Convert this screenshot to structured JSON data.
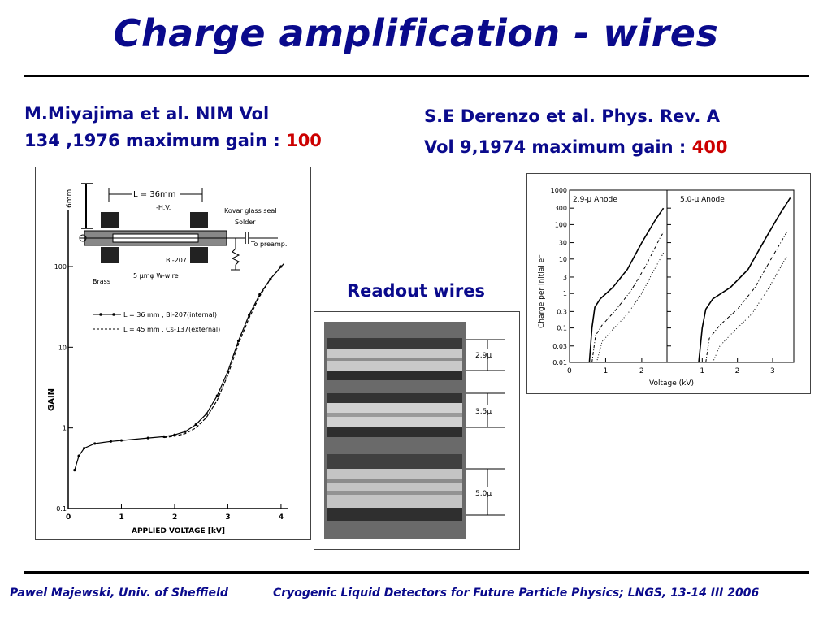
{
  "slide": {
    "title": "Charge amplification  - wires",
    "left_ref": {
      "line1": "M.Miyajima  et al. NIM Vol",
      "line2_prefix": "134 ,1976  maximum gain : ",
      "gain": "100"
    },
    "right_ref": {
      "line1": "S.E Derenzo et al. Phys. Rev. A",
      "line2_prefix": "Vol 9,1974  maximum gain : ",
      "gain": "400"
    },
    "readout_label": "Readout wires",
    "footer_left": "Pawel Majewski, Univ. of Sheffield",
    "footer_right": "Cryogenic Liquid Detectors for Future Particle Physics; LNGS, 13-14 III 2006",
    "colors": {
      "title": "#0a0a8c",
      "highlight": "#cc0000"
    }
  },
  "diagram": {
    "length_label": "L = 36mm",
    "height_label": "6mm",
    "hv_label": "-H.V.",
    "seal_label": "Kovar glass seal",
    "solder_label": "Solder",
    "preamp_label": "To preamp.",
    "source_label": "Bi-207",
    "wire_label": "5 μmφ W-wire",
    "brass_label": "Brass"
  },
  "wires_photo": {
    "labels": [
      "2.9μ",
      "3.5μ",
      "5.0μ"
    ]
  },
  "chart_data": [
    {
      "type": "line",
      "xlabel": "APPLIED VOLTAGE [kV]",
      "ylabel": "GAIN",
      "xlim": [
        0,
        4.2
      ],
      "ylim": [
        0.1,
        100
      ],
      "yscale": "log",
      "xticks": [
        "0",
        "1",
        "2",
        "3",
        "4"
      ],
      "yticks": [
        "0.1",
        "1",
        "10",
        "100"
      ],
      "legend_position": "left",
      "series": [
        {
          "name": "L = 36 mm , Bi-207(internal)",
          "style": "solid-markers",
          "points": [
            [
              0.12,
              0.3
            ],
            [
              0.2,
              0.45
            ],
            [
              0.3,
              0.56
            ],
            [
              0.5,
              0.64
            ],
            [
              0.8,
              0.68
            ],
            [
              1.0,
              0.7
            ],
            [
              1.5,
              0.75
            ],
            [
              1.8,
              0.78
            ],
            [
              2.0,
              0.82
            ],
            [
              2.2,
              0.9
            ],
            [
              2.4,
              1.1
            ],
            [
              2.6,
              1.5
            ],
            [
              2.8,
              2.5
            ],
            [
              3.0,
              5
            ],
            [
              3.2,
              12
            ],
            [
              3.4,
              25
            ],
            [
              3.6,
              45
            ],
            [
              3.8,
              70
            ],
            [
              4.0,
              100
            ]
          ]
        },
        {
          "name": "L = 45 mm , Cs-137(external)",
          "style": "dashed",
          "points": [
            [
              1.8,
              0.76
            ],
            [
              2.0,
              0.79
            ],
            [
              2.2,
              0.85
            ],
            [
              2.4,
              1.0
            ],
            [
              2.6,
              1.35
            ],
            [
              2.8,
              2.2
            ],
            [
              3.0,
              4.5
            ],
            [
              3.2,
              11
            ],
            [
              3.4,
              23
            ],
            [
              3.6,
              43
            ],
            [
              3.8,
              70
            ],
            [
              4.05,
              108
            ]
          ]
        }
      ]
    },
    {
      "type": "line",
      "ylabel": "Charge per initial e⁻",
      "xlabel": "Voltage (kV)",
      "yscale": "log",
      "ylim": [
        0.01,
        1000
      ],
      "yticks": [
        "1000",
        "300",
        "100",
        "30",
        "10",
        "3",
        "1",
        "0.3",
        "0.1",
        "0.03",
        "0.01"
      ],
      "panels": [
        {
          "title": "2.9-μ Anode",
          "xlim": [
            0,
            2.7
          ],
          "xticks": [
            "0",
            "1",
            "2"
          ],
          "series": [
            {
              "style": "solid",
              "points": [
                [
                  0.55,
                  0.01
                ],
                [
                  0.62,
                  0.1
                ],
                [
                  0.7,
                  0.4
                ],
                [
                  0.85,
                  0.7
                ],
                [
                  1.2,
                  1.5
                ],
                [
                  1.6,
                  5
                ],
                [
                  2.0,
                  30
                ],
                [
                  2.4,
                  150
                ],
                [
                  2.6,
                  300
                ]
              ]
            },
            {
              "style": "dash-dot",
              "points": [
                [
                  0.62,
                  0.01
                ],
                [
                  0.72,
                  0.06
                ],
                [
                  0.9,
                  0.12
                ],
                [
                  1.3,
                  0.35
                ],
                [
                  1.7,
                  1.2
                ],
                [
                  2.1,
                  6
                ],
                [
                  2.5,
                  40
                ],
                [
                  2.6,
                  60
                ]
              ]
            },
            {
              "style": "dotted",
              "points": [
                [
                  0.75,
                  0.01
                ],
                [
                  0.9,
                  0.04
                ],
                [
                  1.2,
                  0.09
                ],
                [
                  1.6,
                  0.25
                ],
                [
                  2.0,
                  1
                ],
                [
                  2.3,
                  4
                ],
                [
                  2.6,
                  15
                ]
              ]
            }
          ]
        },
        {
          "title": "5.0-μ Anode",
          "xlim": [
            0,
            3.6
          ],
          "xticks": [
            "1",
            "2",
            "3"
          ],
          "series": [
            {
              "style": "solid",
              "points": [
                [
                  0.9,
                  0.01
                ],
                [
                  1.0,
                  0.1
                ],
                [
                  1.1,
                  0.35
                ],
                [
                  1.3,
                  0.7
                ],
                [
                  1.8,
                  1.5
                ],
                [
                  2.3,
                  5
                ],
                [
                  2.8,
                  40
                ],
                [
                  3.2,
                  200
                ],
                [
                  3.5,
                  600
                ]
              ]
            },
            {
              "style": "dash-dot",
              "points": [
                [
                  1.1,
                  0.01
                ],
                [
                  1.2,
                  0.05
                ],
                [
                  1.5,
                  0.12
                ],
                [
                  2.0,
                  0.35
                ],
                [
                  2.5,
                  1.5
                ],
                [
                  3.0,
                  12
                ],
                [
                  3.4,
                  60
                ]
              ]
            },
            {
              "style": "dotted",
              "points": [
                [
                  1.3,
                  0.01
                ],
                [
                  1.5,
                  0.03
                ],
                [
                  1.9,
                  0.08
                ],
                [
                  2.4,
                  0.25
                ],
                [
                  2.9,
                  1.5
                ],
                [
                  3.4,
                  12
                ]
              ]
            }
          ]
        }
      ]
    }
  ]
}
